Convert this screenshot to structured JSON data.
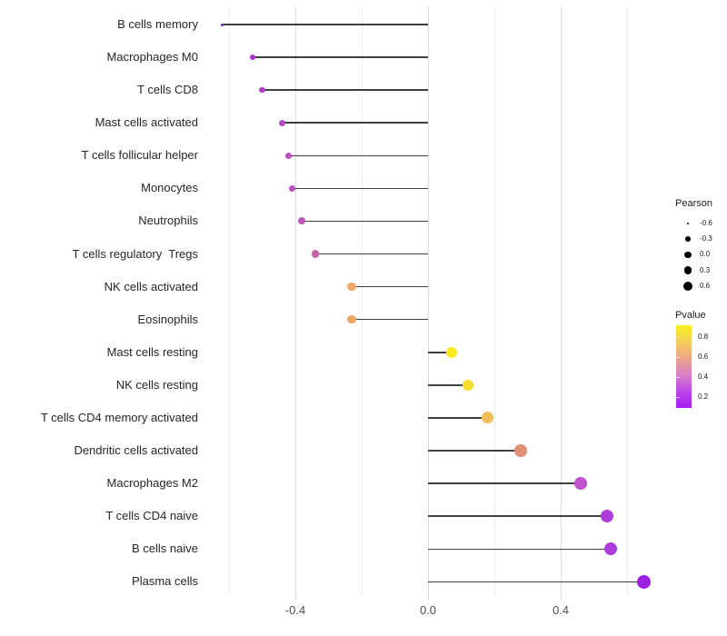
{
  "chart_data": {
    "type": "scatter",
    "variant": "lollipop",
    "orientation": "horizontal",
    "title": "",
    "xlabel": "",
    "ylabel": "",
    "x_tick_labels": [
      "-0.4",
      "0.0",
      "0.4"
    ],
    "x_tick_values": [
      -0.4,
      0.0,
      0.4
    ],
    "xlim": [
      -0.69,
      0.72
    ],
    "gridline_values": [
      -0.6,
      -0.4,
      -0.2,
      0,
      0.2,
      0.4,
      0.6
    ],
    "major_gridline_values": [
      -0.4,
      0,
      0.4
    ],
    "baseline_value": 0,
    "grid": "vertical-only",
    "legend_position": "right",
    "categories": [
      "B cells memory",
      "Macrophages M0",
      "T cells CD8",
      "Mast cells activated",
      "T cells follicular helper",
      "Monocytes",
      "Neutrophils",
      "T cells regulatory  Tregs",
      "NK cells activated",
      "Eosinophils",
      "Mast cells resting",
      "NK cells resting",
      "T cells CD4 memory activated",
      "Dendritic cells activated",
      "Macrophages M2",
      "T cells CD4 naive",
      "B cells naive",
      "Plasma cells"
    ],
    "series": [
      {
        "name": "Pearson",
        "values": [
          -0.62,
          -0.53,
          -0.5,
          -0.44,
          -0.42,
          -0.41,
          -0.38,
          -0.34,
          -0.23,
          -0.23,
          0.07,
          0.12,
          0.18,
          0.28,
          0.46,
          0.54,
          0.55,
          0.65
        ]
      }
    ],
    "points": [
      {
        "label": "B cells memory",
        "pearson": -0.62,
        "pvalue_approx": 0.1,
        "color": "#7E22C5",
        "diameter": 3
      },
      {
        "label": "Macrophages M0",
        "pearson": -0.53,
        "pvalue_approx": 0.25,
        "color": "#AE35CC",
        "diameter": 6
      },
      {
        "label": "T cells CD8",
        "pearson": -0.5,
        "pvalue_approx": 0.27,
        "color": "#B13AC9",
        "diameter": 6.5
      },
      {
        "label": "Mast cells activated",
        "pearson": -0.44,
        "pvalue_approx": 0.32,
        "color": "#B846C6",
        "diameter": 7
      },
      {
        "label": "T cells follicular helper",
        "pearson": -0.42,
        "pvalue_approx": 0.34,
        "color": "#BC4DC3",
        "diameter": 7.5
      },
      {
        "label": "Monocytes",
        "pearson": -0.41,
        "pvalue_approx": 0.35,
        "color": "#BD4FC4",
        "diameter": 7.5
      },
      {
        "label": "Neutrophils",
        "pearson": -0.38,
        "pvalue_approx": 0.38,
        "color": "#C058BD",
        "diameter": 8
      },
      {
        "label": "T cells regulatory  Tregs",
        "pearson": -0.34,
        "pvalue_approx": 0.45,
        "color": "#C966A4",
        "diameter": 8.5
      },
      {
        "label": "NK cells activated",
        "pearson": -0.23,
        "pvalue_approx": 0.62,
        "color": "#EFA867",
        "diameter": 9.5
      },
      {
        "label": "Eosinophils",
        "pearson": -0.23,
        "pvalue_approx": 0.62,
        "color": "#EFA863",
        "diameter": 9.5
      },
      {
        "label": "Mast cells resting",
        "pearson": 0.07,
        "pvalue_approx": 0.88,
        "color": "#F8EB1E",
        "diameter": 12
      },
      {
        "label": "NK cells resting",
        "pearson": 0.12,
        "pvalue_approx": 0.82,
        "color": "#F6DC2E",
        "diameter": 12.5
      },
      {
        "label": "T cells CD4 memory activated",
        "pearson": 0.18,
        "pvalue_approx": 0.68,
        "color": "#EFBD59",
        "diameter": 13
      },
      {
        "label": "Dendritic cells activated",
        "pearson": 0.28,
        "pvalue_approx": 0.55,
        "color": "#E18F78",
        "diameter": 13.5
      },
      {
        "label": "Macrophages M2",
        "pearson": 0.46,
        "pvalue_approx": 0.37,
        "color": "#C251CE",
        "diameter": 13.5
      },
      {
        "label": "T cells CD4 naive",
        "pearson": 0.54,
        "pvalue_approx": 0.27,
        "color": "#AC3DDA",
        "diameter": 14
      },
      {
        "label": "B cells naive",
        "pearson": 0.55,
        "pvalue_approx": 0.27,
        "color": "#AB3EDC",
        "diameter": 14
      },
      {
        "label": "Plasma cells",
        "pearson": 0.65,
        "pvalue_approx": 0.15,
        "color": "#9C21E1",
        "diameter": 15
      }
    ]
  },
  "legend_pearson": {
    "title": "Pearson",
    "dot_color": "#000000",
    "entries": [
      {
        "label": "-0.6",
        "diameter": 2.7
      },
      {
        "label": "-0.3",
        "diameter": 5.7
      },
      {
        "label": "0.0",
        "diameter": 7.3
      },
      {
        "label": "0.3",
        "diameter": 8.7
      },
      {
        "label": "0.6",
        "diameter": 10
      }
    ]
  },
  "legend_pvalue": {
    "title": "Pvalue",
    "tick_labels": [
      "0.8",
      "0.6",
      "0.4",
      "0.2"
    ],
    "gradient": [
      "#F9F21D",
      "#F4CD5B",
      "#ECA489",
      "#D981C9",
      "#BC47E9",
      "#A31FF4"
    ],
    "range_top": 0.91,
    "range_bottom": 0.09
  },
  "colors": {
    "background": "#FFFFFF",
    "stem": "#3F3F3F",
    "grid_major": "#DCDCDC",
    "grid_minor": "#EFEFEF",
    "axis_text": "#4D4D4D",
    "label_text": "#262626"
  }
}
